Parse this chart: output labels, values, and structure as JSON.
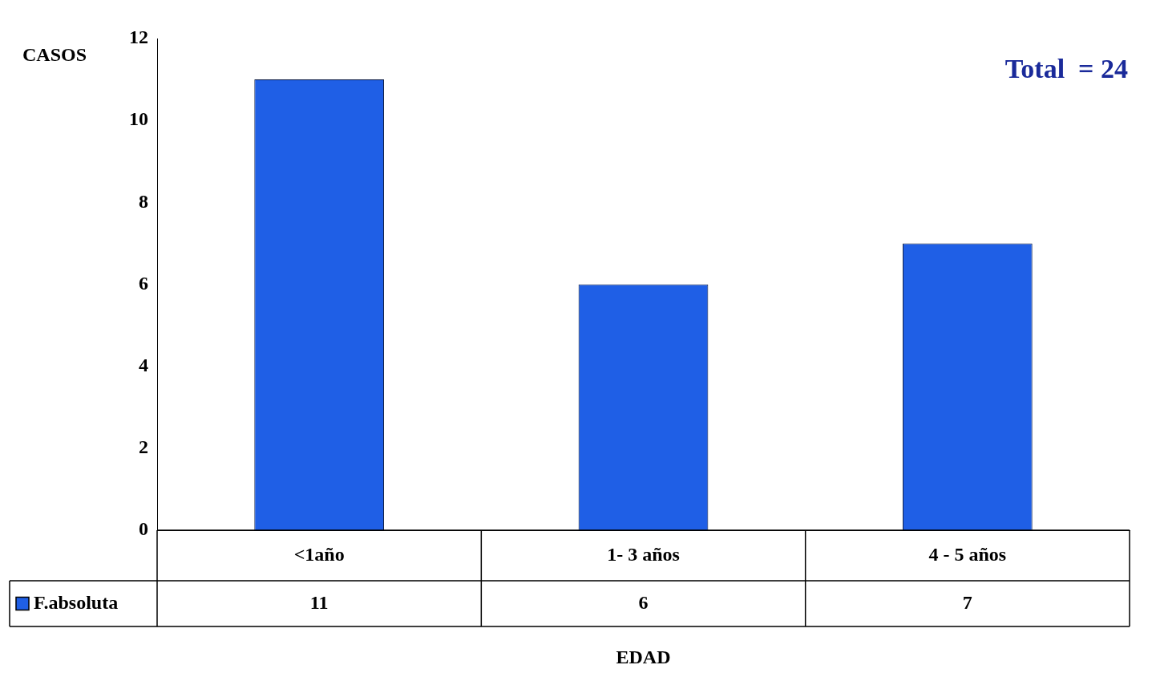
{
  "chart_data": {
    "type": "bar",
    "xlabel": "EDAD",
    "ylabel": "CASOS",
    "annotations": [
      "Total  = 24"
    ],
    "categories": [
      "<1año",
      "1- 3 años",
      "4 - 5 años"
    ],
    "series": [
      {
        "name": "F.absoluta",
        "color": "#1f5fe6",
        "values": [
          11,
          6,
          7
        ]
      }
    ],
    "ylim": [
      0,
      12
    ],
    "yticks": [
      0,
      2,
      4,
      6,
      8,
      10,
      12
    ],
    "data_labels": true,
    "legend": "bottom left"
  }
}
